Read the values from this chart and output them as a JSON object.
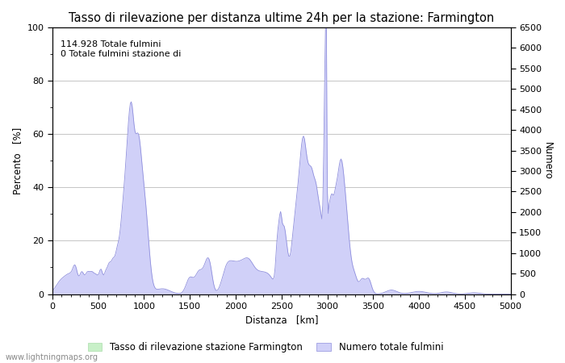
{
  "title": "Tasso di rilevazione per distanza ultime 24h per la stazione: Farmington",
  "xlabel": "Distanza   [km]",
  "ylabel_left": "Percento   [%]",
  "ylabel_right": "Numero",
  "xlim": [
    0,
    5000
  ],
  "ylim_left": [
    0,
    100
  ],
  "ylim_right": [
    0,
    6500
  ],
  "xticks": [
    0,
    500,
    1000,
    1500,
    2000,
    2500,
    3000,
    3500,
    4000,
    4500,
    5000
  ],
  "yticks_left": [
    0,
    20,
    40,
    60,
    80,
    100
  ],
  "yticks_right": [
    0,
    500,
    1000,
    1500,
    2000,
    2500,
    3000,
    3500,
    4000,
    4500,
    5000,
    5500,
    6000,
    6500
  ],
  "annotation_line1": "114.928 Totale fulmini",
  "annotation_line2": "0 Totale fulmini stazione di",
  "legend_label_green": "Tasso di rilevazione stazione Farmington",
  "legend_label_blue": "Numero totale fulmini",
  "fill_color_green": "#c8f0c8",
  "fill_color_blue": "#d0d0f8",
  "line_color_blue": "#9090dd",
  "watermark": "www.lightningmaps.org",
  "bg_color": "#ffffff",
  "grid_color": "#bbbbbb",
  "title_fontsize": 10.5,
  "axis_fontsize": 8.5,
  "tick_fontsize": 8,
  "annotation_fontsize": 8
}
